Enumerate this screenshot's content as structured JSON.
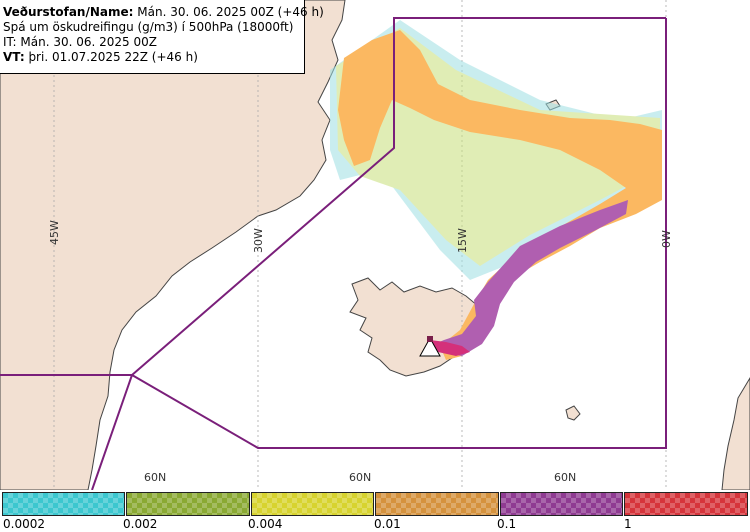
{
  "info": {
    "line1_bold": "Veðurstofan/Name:",
    "line1_rest": " Mán. 30. 06. 2025 00Z (+46 h)",
    "line2": "Spá um öskudreifingu (g/m3) í 500hPa (18000ft)",
    "line3": "IT: Mán. 30. 06. 2025 00Z",
    "line4_bold": "VT:",
    "line4_bold2": " þri. 01.07.2025 22Z",
    "line4_rest": " (+46 h)"
  },
  "map": {
    "lon_labels": [
      "45W",
      "30W",
      "15W",
      "0W"
    ],
    "lat_labels": [
      "60N",
      "60N",
      "60N"
    ],
    "colors": {
      "land": "#f2e0d2",
      "coast": "#444444",
      "graticule": "#aaaaaa",
      "boundary": "#7a1f7a",
      "ash_low": "#f7d070",
      "ash_mid": "#fbb861",
      "ash_high": "#b05fb0",
      "ash_peak": "#d4307a"
    }
  },
  "legend": {
    "labels": [
      "0.0002",
      "0.002",
      "0.004",
      "0.01",
      "0.1",
      "1"
    ],
    "colors": [
      "#3cc7cf",
      "#8aa933",
      "#d7d32f",
      "#d5923d",
      "#8f3b92",
      "#d6343b"
    ]
  }
}
